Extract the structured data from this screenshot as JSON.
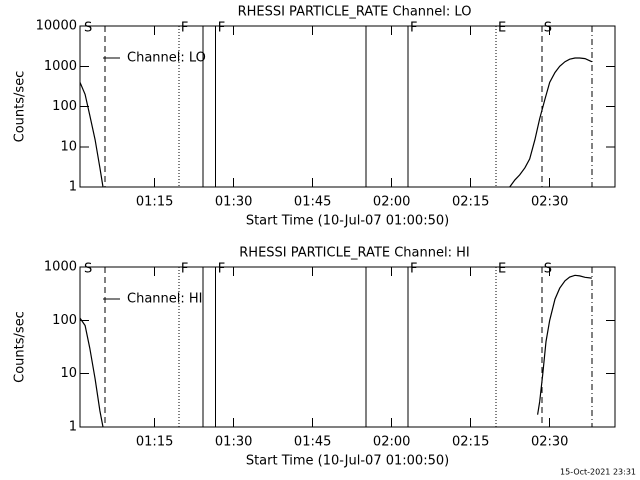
{
  "chart_data": [
    {
      "type": "line",
      "title": "RHESSI PARTICLE_RATE Channel: LO",
      "x_label": "Start Time (10-Jul-07 01:00:50)",
      "y_label": "Counts/sec",
      "log_y": true,
      "ylim": [
        1,
        10000
      ],
      "yticks": [
        1,
        10,
        100,
        1000,
        10000
      ],
      "xlim": [
        60.83,
        162.4
      ],
      "xticks": [
        {
          "value": 75,
          "label": "01:15"
        },
        {
          "value": 90,
          "label": "01:30"
        },
        {
          "value": 105,
          "label": "01:45"
        },
        {
          "value": 120,
          "label": "02:00"
        },
        {
          "value": 135,
          "label": "02:15"
        },
        {
          "value": 150,
          "label": "02:30"
        }
      ],
      "x": [
        60.83,
        61.8,
        62.7,
        63.7,
        64.6,
        65.2,
        null,
        142.4,
        143.4,
        144.3,
        145.3,
        146.2,
        147.2,
        148.1,
        149.1,
        150.0,
        151.0,
        151.9,
        152.9,
        153.8,
        154.8,
        155.7,
        156.7,
        158.0
      ],
      "series": [
        {
          "name": "Channel: LO",
          "color": "#000000",
          "values": [
            400,
            200,
            60,
            15,
            3,
            1,
            null,
            1,
            1.5,
            2,
            3,
            5,
            15,
            50,
            150,
            400,
            700,
            1000,
            1300,
            1500,
            1600,
            1600,
            1550,
            1300
          ]
        }
      ],
      "markers": [
        {
          "x": 65.6,
          "style": "dashed"
        },
        {
          "x": 79.6,
          "style": "dotted"
        },
        {
          "x": 84.2,
          "style": "solid"
        },
        {
          "x": 86.6,
          "style": "solid"
        },
        {
          "x": 115.1,
          "style": "solid"
        },
        {
          "x": 123.1,
          "style": "solid"
        },
        {
          "x": 139.8,
          "style": "dotted"
        },
        {
          "x": 148.5,
          "style": "dashed"
        },
        {
          "x": 158.0,
          "style": "dashdot"
        }
      ],
      "flags": [
        {
          "x": 61.2,
          "label": "S"
        },
        {
          "x": 79.6,
          "label": "F"
        },
        {
          "x": 86.6,
          "label": "F"
        },
        {
          "x": 123.1,
          "label": "F"
        },
        {
          "x": 139.8,
          "label": "E"
        },
        {
          "x": 148.5,
          "label": "S"
        }
      ]
    },
    {
      "type": "line",
      "title": "RHESSI PARTICLE_RATE Channel: HI",
      "x_label": "Start Time (10-Jul-07 01:00:50)",
      "y_label": "Counts/sec",
      "log_y": true,
      "ylim": [
        1,
        1000
      ],
      "yticks": [
        1,
        10,
        100,
        1000
      ],
      "xlim": [
        60.83,
        162.4
      ],
      "xticks": [
        {
          "value": 75,
          "label": "01:15"
        },
        {
          "value": 90,
          "label": "01:30"
        },
        {
          "value": 105,
          "label": "01:45"
        },
        {
          "value": 120,
          "label": "02:00"
        },
        {
          "value": 135,
          "label": "02:15"
        },
        {
          "value": 150,
          "label": "02:30"
        }
      ],
      "x": [
        60.83,
        61.8,
        62.7,
        63.7,
        64.6,
        65.2,
        null,
        147.7,
        148.1,
        148.7,
        149.3,
        150.0,
        151.0,
        151.9,
        152.9,
        153.8,
        154.8,
        155.7,
        156.7,
        158.0
      ],
      "series": [
        {
          "name": "Channel: HI",
          "color": "#000000",
          "values": [
            110,
            80,
            30,
            8,
            2,
            1,
            null,
            1.7,
            3,
            10,
            40,
            100,
            250,
            400,
            550,
            650,
            700,
            680,
            640,
            620
          ]
        }
      ],
      "markers": [
        {
          "x": 65.6,
          "style": "dashed"
        },
        {
          "x": 79.6,
          "style": "dotted"
        },
        {
          "x": 84.2,
          "style": "solid"
        },
        {
          "x": 86.6,
          "style": "solid"
        },
        {
          "x": 115.1,
          "style": "solid"
        },
        {
          "x": 123.1,
          "style": "solid"
        },
        {
          "x": 139.8,
          "style": "dotted"
        },
        {
          "x": 148.5,
          "style": "dashed"
        },
        {
          "x": 158.0,
          "style": "dashdot"
        }
      ],
      "flags": [
        {
          "x": 61.2,
          "label": "S"
        },
        {
          "x": 79.6,
          "label": "F"
        },
        {
          "x": 86.6,
          "label": "F"
        },
        {
          "x": 123.1,
          "label": "F"
        },
        {
          "x": 139.8,
          "label": "E"
        },
        {
          "x": 148.5,
          "label": "S"
        }
      ]
    }
  ],
  "footer": "15-Oct-2021 23:31"
}
